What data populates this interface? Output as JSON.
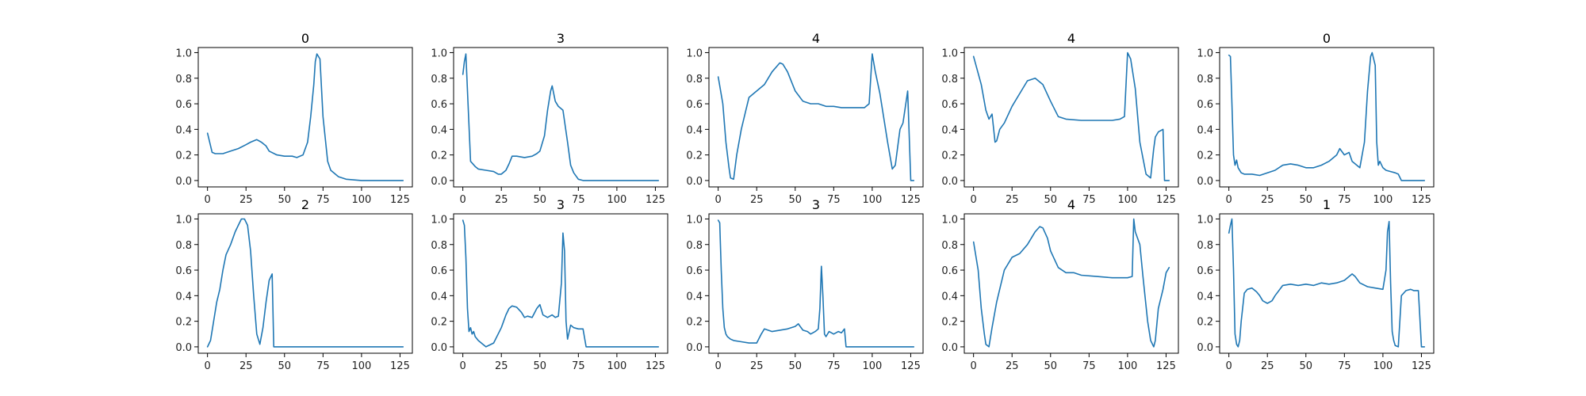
{
  "figure": {
    "rows": 2,
    "cols": 5,
    "line_color": "#1f77b4"
  },
  "chart_data": [
    {
      "type": "line",
      "title": "0",
      "x": [
        0,
        3,
        5,
        10,
        15,
        20,
        25,
        28,
        32,
        35,
        38,
        40,
        45,
        50,
        55,
        58,
        62,
        65,
        67,
        69,
        70,
        71,
        73,
        75,
        78,
        80,
        85,
        90,
        100,
        110,
        120,
        127
      ],
      "y": [
        0.37,
        0.22,
        0.21,
        0.21,
        0.23,
        0.25,
        0.28,
        0.3,
        0.32,
        0.3,
        0.27,
        0.23,
        0.2,
        0.19,
        0.19,
        0.18,
        0.2,
        0.3,
        0.5,
        0.75,
        0.93,
        0.99,
        0.95,
        0.5,
        0.15,
        0.08,
        0.03,
        0.01,
        0.0,
        0.0,
        0.0,
        0.0
      ],
      "xlim": [
        -6,
        133
      ],
      "ylim": [
        -0.05,
        1.04
      ],
      "xticks": [
        0,
        25,
        50,
        75,
        100,
        125
      ],
      "yticks": [
        0.0,
        0.2,
        0.4,
        0.6,
        0.8,
        1.0
      ],
      "xtick_labels": [
        "0",
        "25",
        "50",
        "75",
        "100",
        "125"
      ],
      "ytick_labels": [
        "0.0",
        "0.2",
        "0.4",
        "0.6",
        "0.8",
        "1.0"
      ]
    },
    {
      "type": "line",
      "title": "3",
      "x": [
        0,
        1,
        2,
        3,
        5,
        8,
        10,
        15,
        20,
        23,
        25,
        28,
        30,
        32,
        35,
        40,
        45,
        48,
        50,
        53,
        55,
        57,
        58,
        60,
        62,
        65,
        68,
        70,
        72,
        75,
        78,
        85,
        100,
        127
      ],
      "y": [
        0.83,
        0.93,
        0.99,
        0.7,
        0.15,
        0.11,
        0.09,
        0.08,
        0.07,
        0.05,
        0.05,
        0.08,
        0.13,
        0.19,
        0.19,
        0.18,
        0.19,
        0.21,
        0.23,
        0.35,
        0.55,
        0.7,
        0.74,
        0.62,
        0.58,
        0.55,
        0.3,
        0.12,
        0.06,
        0.01,
        0.0,
        0.0,
        0.0,
        0.0
      ],
      "xlim": [
        -6,
        133
      ],
      "ylim": [
        -0.05,
        1.04
      ],
      "xticks": [
        0,
        25,
        50,
        75,
        100,
        125
      ],
      "yticks": [
        0.0,
        0.2,
        0.4,
        0.6,
        0.8,
        1.0
      ],
      "xtick_labels": [
        "0",
        "25",
        "50",
        "75",
        "100",
        "125"
      ],
      "ytick_labels": [
        "0.0",
        "0.2",
        "0.4",
        "0.6",
        "0.8",
        "1.0"
      ]
    },
    {
      "type": "line",
      "title": "4",
      "x": [
        0,
        3,
        5,
        7,
        8,
        10,
        12,
        15,
        18,
        20,
        25,
        30,
        35,
        40,
        42,
        45,
        50,
        55,
        60,
        65,
        70,
        75,
        80,
        90,
        95,
        98,
        100,
        102,
        105,
        110,
        113,
        115,
        118,
        120,
        123,
        125,
        127
      ],
      "y": [
        0.81,
        0.6,
        0.3,
        0.1,
        0.02,
        0.01,
        0.2,
        0.4,
        0.55,
        0.65,
        0.7,
        0.75,
        0.85,
        0.92,
        0.91,
        0.85,
        0.7,
        0.62,
        0.6,
        0.6,
        0.58,
        0.58,
        0.57,
        0.57,
        0.57,
        0.6,
        0.99,
        0.85,
        0.68,
        0.3,
        0.09,
        0.12,
        0.4,
        0.45,
        0.7,
        0.0,
        0.0
      ],
      "xlim": [
        -6,
        133
      ],
      "ylim": [
        -0.05,
        1.04
      ],
      "xticks": [
        0,
        25,
        50,
        75,
        100,
        125
      ],
      "yticks": [
        0.0,
        0.2,
        0.4,
        0.6,
        0.8,
        1.0
      ],
      "xtick_labels": [
        "0",
        "25",
        "50",
        "75",
        "100",
        "125"
      ],
      "ytick_labels": [
        "0.0",
        "0.2",
        "0.4",
        "0.6",
        "0.8",
        "1.0"
      ]
    },
    {
      "type": "line",
      "title": "4",
      "x": [
        0,
        5,
        8,
        10,
        12,
        14,
        15,
        17,
        20,
        25,
        30,
        35,
        40,
        45,
        50,
        55,
        60,
        70,
        80,
        90,
        95,
        98,
        100,
        102,
        105,
        108,
        112,
        115,
        117,
        118,
        120,
        123,
        124,
        125,
        127
      ],
      "y": [
        0.97,
        0.75,
        0.55,
        0.48,
        0.52,
        0.3,
        0.31,
        0.4,
        0.45,
        0.58,
        0.68,
        0.78,
        0.8,
        0.75,
        0.62,
        0.5,
        0.48,
        0.47,
        0.47,
        0.47,
        0.48,
        0.5,
        1.0,
        0.95,
        0.72,
        0.3,
        0.05,
        0.02,
        0.25,
        0.34,
        0.38,
        0.4,
        0.0,
        0.0,
        0.0
      ],
      "xlim": [
        -6,
        133
      ],
      "ylim": [
        -0.05,
        1.04
      ],
      "xticks": [
        0,
        25,
        50,
        75,
        100,
        125
      ],
      "yticks": [
        0.0,
        0.2,
        0.4,
        0.6,
        0.8,
        1.0
      ],
      "xtick_labels": [
        "0",
        "25",
        "50",
        "75",
        "100",
        "125"
      ],
      "ytick_labels": [
        "0.0",
        "0.2",
        "0.4",
        "0.6",
        "0.8",
        "1.0"
      ]
    },
    {
      "type": "line",
      "title": "0",
      "x": [
        0,
        1,
        2,
        3,
        4,
        5,
        6,
        8,
        10,
        15,
        20,
        25,
        30,
        35,
        40,
        45,
        50,
        55,
        60,
        65,
        70,
        72,
        75,
        78,
        80,
        85,
        88,
        90,
        92,
        93,
        95,
        96,
        97,
        98,
        100,
        102,
        105,
        108,
        110,
        112,
        115,
        120,
        127
      ],
      "y": [
        0.98,
        0.97,
        0.6,
        0.2,
        0.12,
        0.16,
        0.1,
        0.06,
        0.05,
        0.05,
        0.04,
        0.06,
        0.08,
        0.12,
        0.13,
        0.12,
        0.1,
        0.1,
        0.12,
        0.15,
        0.2,
        0.25,
        0.2,
        0.22,
        0.15,
        0.1,
        0.3,
        0.7,
        0.97,
        1.0,
        0.9,
        0.3,
        0.12,
        0.15,
        0.1,
        0.08,
        0.07,
        0.06,
        0.05,
        0.0,
        0.0,
        0.0,
        0.0
      ],
      "xlim": [
        -6,
        133
      ],
      "ylim": [
        -0.05,
        1.04
      ],
      "xticks": [
        0,
        25,
        50,
        75,
        100,
        125
      ],
      "yticks": [
        0.0,
        0.2,
        0.4,
        0.6,
        0.8,
        1.0
      ],
      "xtick_labels": [
        "0",
        "25",
        "50",
        "75",
        "100",
        "125"
      ],
      "ytick_labels": [
        "0.0",
        "0.2",
        "0.4",
        "0.6",
        "0.8",
        "1.0"
      ]
    },
    {
      "type": "line",
      "title": "2",
      "x": [
        0,
        2,
        4,
        6,
        8,
        10,
        12,
        15,
        18,
        20,
        22,
        24,
        26,
        28,
        30,
        32,
        34,
        36,
        38,
        40,
        42,
        43,
        44,
        50,
        75,
        100,
        127
      ],
      "y": [
        0.0,
        0.05,
        0.2,
        0.35,
        0.45,
        0.6,
        0.72,
        0.8,
        0.9,
        0.95,
        1.0,
        1.0,
        0.95,
        0.75,
        0.4,
        0.1,
        0.02,
        0.15,
        0.35,
        0.52,
        0.57,
        0.0,
        0.0,
        0.0,
        0.0,
        0.0,
        0.0
      ],
      "xlim": [
        -6,
        133
      ],
      "ylim": [
        -0.05,
        1.04
      ],
      "xticks": [
        0,
        25,
        50,
        75,
        100,
        125
      ],
      "yticks": [
        0.0,
        0.2,
        0.4,
        0.6,
        0.8,
        1.0
      ],
      "xtick_labels": [
        "0",
        "25",
        "50",
        "75",
        "100",
        "125"
      ],
      "ytick_labels": [
        "0.0",
        "0.2",
        "0.4",
        "0.6",
        "0.8",
        "1.0"
      ]
    },
    {
      "type": "line",
      "title": "3",
      "x": [
        0,
        1,
        2,
        3,
        4,
        5,
        6,
        7,
        8,
        10,
        12,
        15,
        20,
        25,
        28,
        30,
        32,
        35,
        38,
        40,
        42,
        45,
        48,
        50,
        52,
        55,
        58,
        60,
        62,
        64,
        65,
        66,
        67,
        68,
        70,
        72,
        75,
        78,
        80,
        85,
        100,
        127
      ],
      "y": [
        0.99,
        0.95,
        0.7,
        0.3,
        0.12,
        0.15,
        0.1,
        0.12,
        0.08,
        0.05,
        0.03,
        0.0,
        0.03,
        0.15,
        0.25,
        0.3,
        0.32,
        0.31,
        0.27,
        0.23,
        0.24,
        0.23,
        0.3,
        0.33,
        0.25,
        0.23,
        0.25,
        0.23,
        0.24,
        0.5,
        0.89,
        0.75,
        0.2,
        0.06,
        0.17,
        0.15,
        0.14,
        0.14,
        0.0,
        0.0,
        0.0,
        0.0
      ],
      "xlim": [
        -6,
        133
      ],
      "ylim": [
        -0.05,
        1.04
      ],
      "xticks": [
        0,
        25,
        50,
        75,
        100,
        125
      ],
      "yticks": [
        0.0,
        0.2,
        0.4,
        0.6,
        0.8,
        1.0
      ],
      "xtick_labels": [
        "0",
        "25",
        "50",
        "75",
        "100",
        "125"
      ],
      "ytick_labels": [
        "0.0",
        "0.2",
        "0.4",
        "0.6",
        "0.8",
        "1.0"
      ]
    },
    {
      "type": "line",
      "title": "3",
      "x": [
        0,
        1,
        2,
        3,
        4,
        5,
        6,
        8,
        10,
        15,
        20,
        25,
        28,
        30,
        35,
        40,
        45,
        50,
        52,
        55,
        58,
        60,
        63,
        65,
        66,
        67,
        68,
        69,
        70,
        72,
        75,
        78,
        80,
        82,
        83,
        85,
        90,
        100,
        127
      ],
      "y": [
        0.99,
        0.97,
        0.6,
        0.3,
        0.15,
        0.1,
        0.08,
        0.06,
        0.05,
        0.04,
        0.03,
        0.03,
        0.1,
        0.14,
        0.12,
        0.13,
        0.14,
        0.16,
        0.18,
        0.13,
        0.12,
        0.1,
        0.12,
        0.14,
        0.3,
        0.63,
        0.4,
        0.1,
        0.08,
        0.12,
        0.1,
        0.12,
        0.11,
        0.14,
        0.0,
        0.0,
        0.0,
        0.0,
        0.0
      ],
      "xlim": [
        -6,
        133
      ],
      "ylim": [
        -0.05,
        1.04
      ],
      "xticks": [
        0,
        25,
        50,
        75,
        100,
        125
      ],
      "yticks": [
        0.0,
        0.2,
        0.4,
        0.6,
        0.8,
        1.0
      ],
      "xtick_labels": [
        "0",
        "25",
        "50",
        "75",
        "100",
        "125"
      ],
      "ytick_labels": [
        "0.0",
        "0.2",
        "0.4",
        "0.6",
        "0.8",
        "1.0"
      ]
    },
    {
      "type": "line",
      "title": "4",
      "x": [
        0,
        3,
        5,
        7,
        8,
        10,
        12,
        15,
        18,
        20,
        25,
        30,
        35,
        40,
        43,
        45,
        48,
        50,
        55,
        60,
        65,
        70,
        80,
        90,
        100,
        103,
        104,
        105,
        108,
        110,
        113,
        115,
        117,
        118,
        120,
        123,
        125,
        127
      ],
      "y": [
        0.82,
        0.6,
        0.3,
        0.1,
        0.02,
        0.0,
        0.15,
        0.35,
        0.5,
        0.6,
        0.7,
        0.73,
        0.8,
        0.9,
        0.94,
        0.93,
        0.85,
        0.75,
        0.62,
        0.58,
        0.58,
        0.56,
        0.55,
        0.54,
        0.54,
        0.55,
        1.0,
        0.9,
        0.8,
        0.55,
        0.2,
        0.05,
        0.0,
        0.05,
        0.3,
        0.45,
        0.58,
        0.62
      ],
      "xlim": [
        -6,
        133
      ],
      "ylim": [
        -0.05,
        1.04
      ],
      "xticks": [
        0,
        25,
        50,
        75,
        100,
        125
      ],
      "yticks": [
        0.0,
        0.2,
        0.4,
        0.6,
        0.8,
        1.0
      ],
      "xtick_labels": [
        "0",
        "25",
        "50",
        "75",
        "100",
        "125"
      ],
      "ytick_labels": [
        "0.0",
        "0.2",
        "0.4",
        "0.6",
        "0.8",
        "1.0"
      ]
    },
    {
      "type": "line",
      "title": "1",
      "x": [
        0,
        1,
        2,
        3,
        4,
        5,
        6,
        7,
        8,
        10,
        12,
        15,
        18,
        20,
        22,
        25,
        28,
        30,
        35,
        40,
        45,
        50,
        55,
        60,
        65,
        70,
        75,
        80,
        82,
        85,
        90,
        95,
        100,
        102,
        103,
        104,
        105,
        106,
        107,
        108,
        110,
        112,
        115,
        118,
        120,
        123,
        125,
        127
      ],
      "y": [
        0.89,
        0.95,
        1.0,
        0.6,
        0.1,
        0.02,
        0.0,
        0.05,
        0.2,
        0.42,
        0.45,
        0.46,
        0.43,
        0.4,
        0.36,
        0.34,
        0.36,
        0.4,
        0.48,
        0.49,
        0.48,
        0.49,
        0.48,
        0.5,
        0.49,
        0.5,
        0.52,
        0.57,
        0.55,
        0.5,
        0.47,
        0.46,
        0.45,
        0.6,
        0.9,
        0.98,
        0.5,
        0.12,
        0.05,
        0.01,
        0.0,
        0.4,
        0.44,
        0.45,
        0.44,
        0.44,
        0.0,
        0.0
      ],
      "xlim": [
        -6,
        133
      ],
      "ylim": [
        -0.05,
        1.04
      ],
      "xticks": [
        0,
        25,
        50,
        75,
        100,
        125
      ],
      "yticks": [
        0.0,
        0.2,
        0.4,
        0.6,
        0.8,
        1.0
      ],
      "xtick_labels": [
        "0",
        "25",
        "50",
        "75",
        "100",
        "125"
      ],
      "ytick_labels": [
        "0.0",
        "0.2",
        "0.4",
        "0.6",
        "0.8",
        "1.0"
      ]
    }
  ]
}
